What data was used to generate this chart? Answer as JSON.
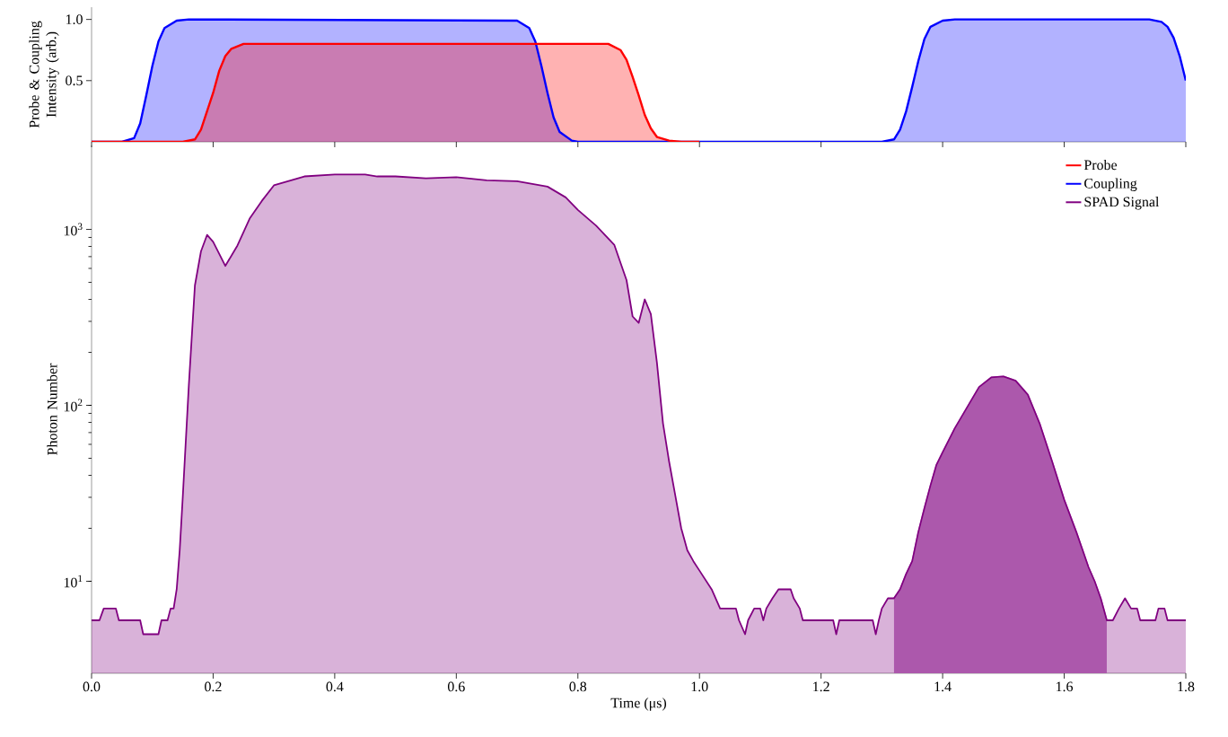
{
  "chart_data": [
    {
      "type": "area",
      "ylabel": "Probe & Coupling Intensity (arb.)",
      "xlim": [
        0,
        1.8
      ],
      "ylim": [
        0,
        1.1
      ],
      "xticks": [
        0,
        0.2,
        0.4,
        0.6,
        0.8,
        1,
        1.2,
        1.4,
        1.6,
        1.8
      ],
      "yticks": [
        0.5,
        {
          "value": 1,
          "label": "1.0"
        }
      ],
      "tick_labels": "y",
      "series": [
        {
          "name": "Coupling",
          "color": "#0000ff",
          "x": [
            0,
            0.05,
            0.07,
            0.08,
            0.09,
            0.1,
            0.11,
            0.12,
            0.14,
            0.16,
            0.7,
            0.72,
            0.73,
            0.74,
            0.75,
            0.76,
            0.77,
            0.79,
            0.8,
            1.3,
            1.32,
            1.33,
            1.34,
            1.35,
            1.36,
            1.37,
            1.38,
            1.4,
            1.42,
            1.74,
            1.76,
            1.77,
            1.78,
            1.79,
            1.8
          ],
          "values": [
            0,
            0,
            0.03,
            0.15,
            0.38,
            0.62,
            0.82,
            0.93,
            0.99,
            1.0,
            0.99,
            0.93,
            0.82,
            0.62,
            0.4,
            0.2,
            0.08,
            0.01,
            0,
            0,
            0.02,
            0.1,
            0.25,
            0.45,
            0.66,
            0.84,
            0.94,
            0.99,
            1.0,
            1.0,
            0.98,
            0.94,
            0.85,
            0.7,
            0.5
          ]
        },
        {
          "name": "Probe",
          "color": "#ff0000",
          "x": [
            0,
            0.15,
            0.17,
            0.18,
            0.19,
            0.2,
            0.21,
            0.22,
            0.23,
            0.25,
            0.85,
            0.87,
            0.88,
            0.89,
            0.9,
            0.91,
            0.92,
            0.93,
            0.95,
            0.97,
            1.0
          ],
          "values": [
            0,
            0,
            0.02,
            0.1,
            0.25,
            0.4,
            0.58,
            0.7,
            0.76,
            0.8,
            0.8,
            0.75,
            0.67,
            0.53,
            0.38,
            0.22,
            0.11,
            0.04,
            0.01,
            0,
            0
          ]
        }
      ]
    },
    {
      "type": "area",
      "xlabel": "Time (μs)",
      "ylabel": "Photon Number",
      "log": true,
      "legend": "top right",
      "xlim": [
        0,
        1.8
      ],
      "ylim": [
        3,
        3000
      ],
      "xticks": [
        {
          "value": 0,
          "label": "0.0"
        },
        0.2,
        0.4,
        0.6,
        0.8,
        {
          "value": 1,
          "label": "1.0"
        },
        1.2,
        1.4,
        1.6,
        1.8
      ],
      "yticks": [
        {
          "value": 10,
          "label": "10$^{1}$"
        },
        {
          "value": 100,
          "label": "10$^{2}$"
        },
        {
          "value": 1000,
          "label": "10$^{3}$"
        }
      ],
      "series": [
        {
          "type": "area",
          "color": "#bf7fbf",
          "x": [
            1.32,
            1.33,
            1.34,
            1.35,
            1.36,
            1.37,
            1.38,
            1.39,
            1.4,
            1.42,
            1.44,
            1.46,
            1.48,
            1.5,
            1.52,
            1.54,
            1.56,
            1.58,
            1.6,
            1.62,
            1.64,
            1.65,
            1.66,
            1.67
          ],
          "values": [
            8,
            9,
            11,
            13,
            19,
            26,
            35,
            46,
            54,
            74,
            97,
            127,
            144,
            146,
            138,
            115,
            78,
            48,
            29,
            19,
            12,
            10,
            8,
            6
          ]
        },
        {
          "name": "SPAD Signal",
          "color": "#800080",
          "x": [
            0,
            0.013,
            0.02,
            0.04,
            0.045,
            0.08,
            0.085,
            0.11,
            0.115,
            0.125,
            0.13,
            0.135,
            0.14,
            0.145,
            0.15,
            0.16,
            0.17,
            0.18,
            0.19,
            0.2,
            0.22,
            0.24,
            0.26,
            0.28,
            0.3,
            0.35,
            0.4,
            0.45,
            0.47,
            0.5,
            0.55,
            0.6,
            0.65,
            0.7,
            0.75,
            0.78,
            0.8,
            0.83,
            0.86,
            0.88,
            0.89,
            0.9,
            0.91,
            0.92,
            0.93,
            0.94,
            0.95,
            0.96,
            0.97,
            0.98,
            0.99,
            1.0,
            1.02,
            1.034,
            1.06,
            1.065,
            1.075,
            1.08,
            1.09,
            1.1,
            1.105,
            1.11,
            1.12,
            1.13,
            1.15,
            1.155,
            1.165,
            1.17,
            1.22,
            1.225,
            1.23,
            1.285,
            1.29,
            1.295,
            1.3,
            1.31,
            1.32,
            1.33,
            1.34,
            1.35,
            1.36,
            1.37,
            1.38,
            1.39,
            1.4,
            1.42,
            1.44,
            1.46,
            1.48,
            1.5,
            1.52,
            1.54,
            1.56,
            1.58,
            1.6,
            1.62,
            1.64,
            1.65,
            1.66,
            1.67,
            1.68,
            1.69,
            1.7,
            1.71,
            1.72,
            1.725,
            1.75,
            1.755,
            1.765,
            1.77,
            1.8
          ],
          "values": [
            6,
            6,
            7,
            7,
            6,
            6,
            5,
            5,
            6,
            6,
            7,
            7,
            9,
            15,
            30,
            130,
            480,
            750,
            930,
            850,
            620,
            810,
            1150,
            1450,
            1780,
            2000,
            2050,
            2050,
            2000,
            2000,
            1950,
            1980,
            1900,
            1880,
            1750,
            1520,
            1290,
            1050,
            815,
            515,
            320,
            294,
            400,
            330,
            175,
            79,
            48,
            31,
            20,
            15,
            13,
            11.5,
            9,
            7,
            7,
            6,
            5,
            6,
            7,
            7,
            6,
            7,
            8,
            9,
            9,
            8,
            7,
            6,
            6,
            5,
            6,
            6,
            5,
            6,
            7,
            8,
            8,
            9,
            11,
            13,
            19,
            26,
            35,
            46,
            54,
            74,
            97,
            127,
            144,
            146,
            138,
            115,
            78,
            48,
            29,
            19,
            12,
            10,
            8,
            6,
            6,
            7,
            8,
            7,
            7,
            6,
            6,
            7,
            7,
            6,
            6
          ]
        }
      ]
    }
  ]
}
